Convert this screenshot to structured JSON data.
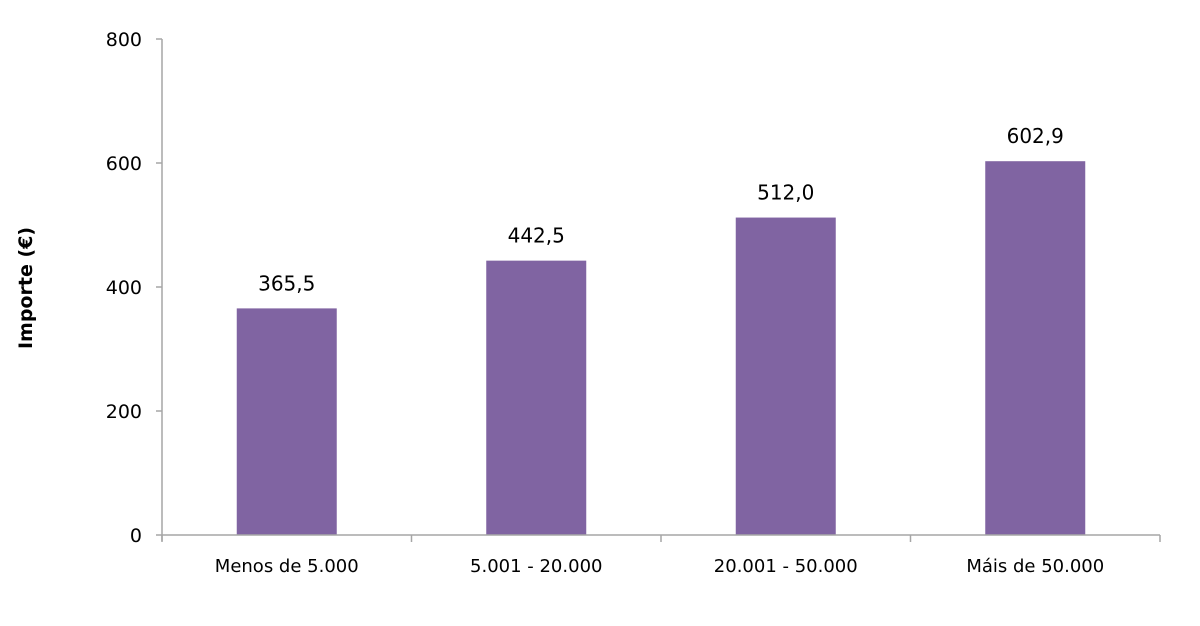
{
  "chart_data": {
    "type": "bar",
    "title": "",
    "xlabel": "",
    "ylabel": "Importe (€)",
    "categories": [
      "Menos de 5.000",
      "5.001 - 20.000",
      "20.001 - 50.000",
      "Máis de 50.000"
    ],
    "values": [
      365.5,
      442.5,
      512.0,
      602.9
    ],
    "data_labels": [
      "365,5",
      "442,5",
      "512,0",
      "602,9"
    ],
    "ylim": [
      0,
      800
    ],
    "yticks": [
      0,
      200,
      400,
      600,
      800
    ],
    "grid": false,
    "legend": "none",
    "bar_color": "#8064A2",
    "axis_color": "#A6A6A6"
  }
}
